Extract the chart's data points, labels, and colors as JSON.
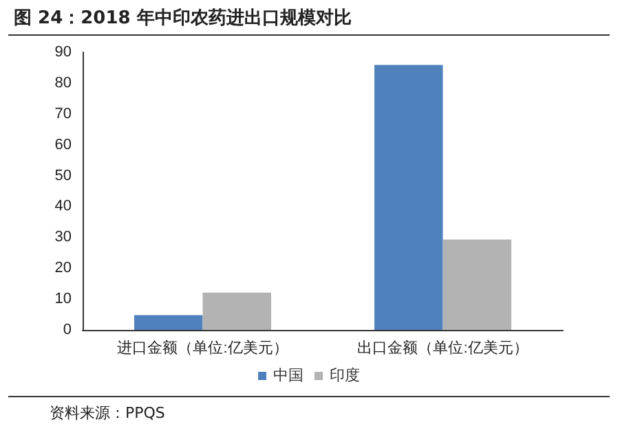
{
  "chart_data": {
    "type": "bar",
    "title": "图 24：2018 年中印农药进出口规模对比",
    "categories": [
      "进口金额（单位:亿美元）",
      "出口金额（单位:亿美元）"
    ],
    "series": [
      {
        "name": "中国",
        "color": "#4f81bd",
        "values": [
          4.8,
          85.9
        ]
      },
      {
        "name": "印度",
        "color": "#b3b3b3",
        "values": [
          12.1,
          29.3
        ]
      }
    ],
    "ylim": [
      0,
      90
    ],
    "yticks": [
      0,
      10,
      20,
      30,
      40,
      50,
      60,
      70,
      80,
      90
    ],
    "grid": false,
    "legend": "bottom",
    "annotations": [
      "资料来源：PPQS"
    ]
  }
}
